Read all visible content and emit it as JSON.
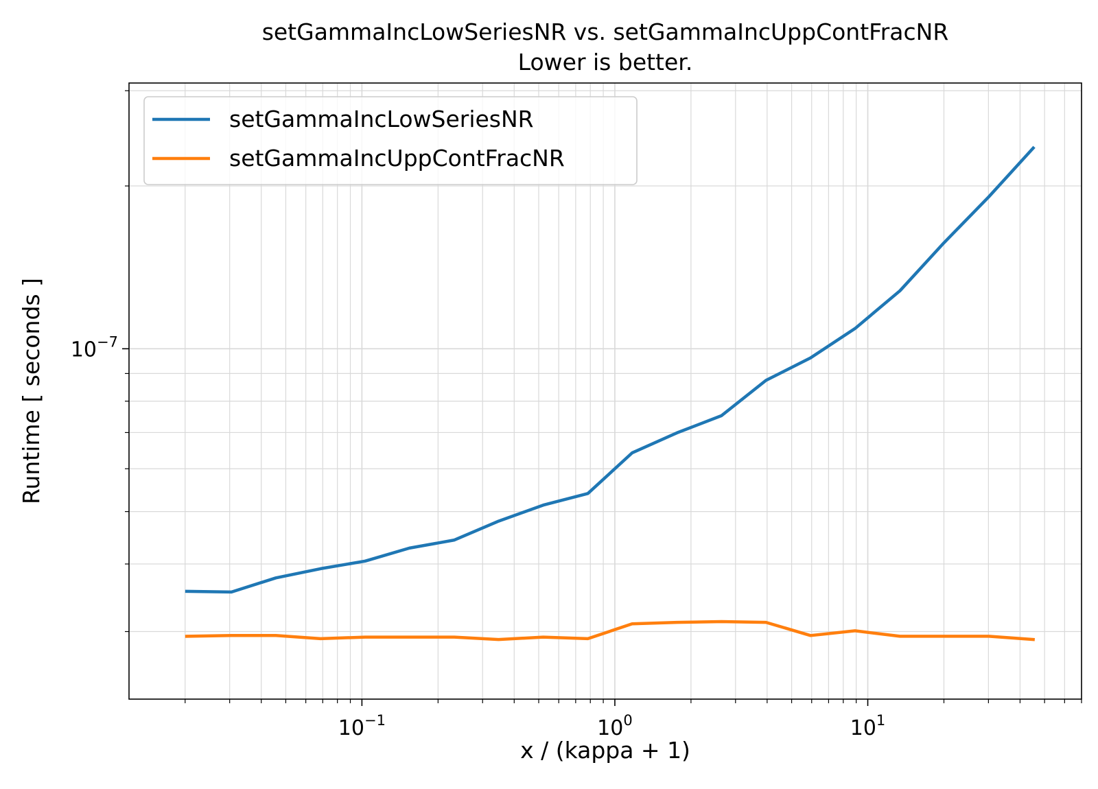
{
  "chart_data": {
    "type": "line",
    "title": "setGammaIncLowSeriesNR vs. setGammaIncUppContFracNR",
    "subtitle": "Lower is better.",
    "xlabel": "x / (kappa + 1)",
    "ylabel": "Runtime [ seconds ]",
    "xscale": "log",
    "yscale": "log",
    "xlim": [
      0.012,
      70
    ],
    "ylim": [
      2.25e-08,
      3.1e-07
    ],
    "grid": true,
    "legend_position": "top-left",
    "x_ticks": [
      {
        "value": 0.1,
        "base": "10",
        "exp": "−1"
      },
      {
        "value": 1,
        "base": "10",
        "exp": "0"
      },
      {
        "value": 10,
        "base": "10",
        "exp": "1"
      }
    ],
    "y_ticks": [
      {
        "value": 1e-07,
        "base": "10",
        "exp": "−7"
      }
    ],
    "x": [
      0.0203,
      0.0305,
      0.0457,
      0.0686,
      0.103,
      0.154,
      0.232,
      0.347,
      0.521,
      0.782,
      1.17,
      1.76,
      2.64,
      3.96,
      5.94,
      8.91,
      13.4,
      20.0,
      30.1,
      45.1
    ],
    "series": [
      {
        "name": "setGammaIncLowSeriesNR",
        "color": "#1f77b4",
        "values": [
          3.56e-08,
          3.55e-08,
          3.77e-08,
          3.92e-08,
          4.05e-08,
          4.28e-08,
          4.43e-08,
          4.8e-08,
          5.14e-08,
          5.4e-08,
          6.42e-08,
          6.99e-08,
          7.52e-08,
          8.74e-08,
          9.62e-08,
          1.09e-07,
          1.28e-07,
          1.57e-07,
          1.91e-07,
          2.35e-07
        ]
      },
      {
        "name": "setGammaIncUppContFracNR",
        "color": "#ff7f0e",
        "values": [
          2.94e-08,
          2.95e-08,
          2.95e-08,
          2.91e-08,
          2.93e-08,
          2.93e-08,
          2.93e-08,
          2.9e-08,
          2.93e-08,
          2.91e-08,
          3.1e-08,
          3.12e-08,
          3.13e-08,
          3.12e-08,
          2.95e-08,
          3.01e-08,
          2.94e-08,
          2.94e-08,
          2.94e-08,
          2.9e-08
        ]
      }
    ]
  }
}
